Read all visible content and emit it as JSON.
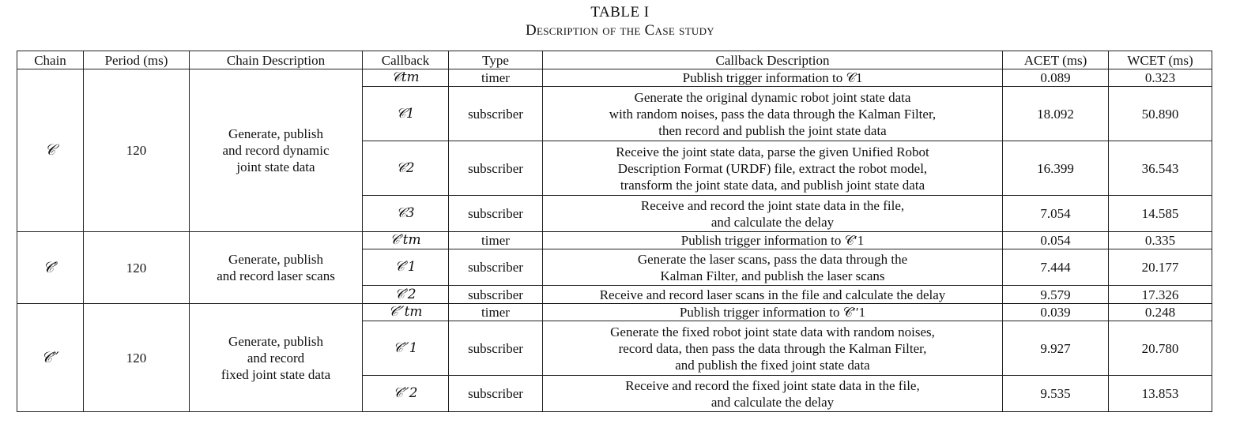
{
  "caption": {
    "label": "TABLE I",
    "title": "Description of the Case study"
  },
  "columns": [
    "Chain",
    "Period (ms)",
    "Chain Description",
    "Callback",
    "Type",
    "Callback Description",
    "ACET (ms)",
    "WCET (ms)"
  ],
  "chains": [
    {
      "chain": "𝒞",
      "period": "120",
      "description": "Generate, publish\nand record dynamic\njoint state data",
      "callbacks": [
        {
          "callback": "𝒞tm",
          "type": "timer",
          "description": "Publish trigger information to 𝒞1",
          "acet": "0.089",
          "wcet": "0.323"
        },
        {
          "callback": "𝒞1",
          "type": "subscriber",
          "description": "Generate the original dynamic robot joint state data\nwith random noises, pass the data through the Kalman Filter,\nthen record and publish the joint state data",
          "acet": "18.092",
          "wcet": "50.890"
        },
        {
          "callback": "𝒞2",
          "type": "subscriber",
          "description": "Receive the joint state data, parse the given Unified Robot\nDescription Format (URDF) file, extract the robot model,\ntransform the joint state data, and publish joint state data",
          "acet": "16.399",
          "wcet": "36.543"
        },
        {
          "callback": "𝒞3",
          "type": "subscriber",
          "description": "Receive and record the joint state data in the file,\nand calculate the delay",
          "acet": "7.054",
          "wcet": "14.585"
        }
      ]
    },
    {
      "chain": "𝒞′",
      "period": "120",
      "description": "Generate, publish\nand record laser scans",
      "callbacks": [
        {
          "callback": "𝒞′tm",
          "type": "timer",
          "description": "Publish trigger information to 𝒞′1",
          "acet": "0.054",
          "wcet": "0.335"
        },
        {
          "callback": "𝒞′1",
          "type": "subscriber",
          "description": "Generate the laser scans, pass the data through the\nKalman Filter, and publish the laser scans",
          "acet": "7.444",
          "wcet": "20.177"
        },
        {
          "callback": "𝒞′2",
          "type": "subscriber",
          "description": "Receive and record laser scans in the file and calculate the delay",
          "acet": "9.579",
          "wcet": "17.326"
        }
      ]
    },
    {
      "chain": "𝒞′′",
      "period": "120",
      "description": "Generate, publish\nand record\nfixed joint state data",
      "callbacks": [
        {
          "callback": "𝒞′′tm",
          "type": "timer",
          "description": "Publish trigger information to 𝒞′′1",
          "acet": "0.039",
          "wcet": "0.248"
        },
        {
          "callback": "𝒞′′1",
          "type": "subscriber",
          "description": "Generate the fixed robot joint state data with random noises,\nrecord data, then pass the data through the Kalman Filter,\nand publish the fixed joint state data",
          "acet": "9.927",
          "wcet": "20.780"
        },
        {
          "callback": "𝒞′′2",
          "type": "subscriber",
          "description": "Receive and record the fixed joint state data in the file,\nand calculate the delay",
          "acet": "9.535",
          "wcet": "13.853"
        }
      ]
    }
  ]
}
